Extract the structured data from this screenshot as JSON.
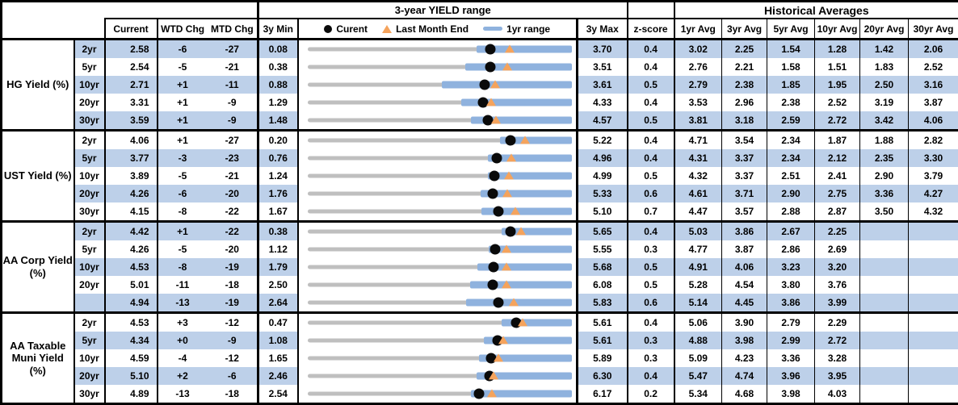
{
  "header": {
    "range_title": "3-year YIELD range",
    "historical_title": "Historical Averages",
    "col_current": "Current",
    "col_wtd": "WTD Chg",
    "col_mtd": "MTD Chg",
    "col_3y_min": "3y Min",
    "col_3y_max": "3y Max",
    "col_zscore": "z-score",
    "avg_cols": [
      "1yr Avg",
      "3yr Avg",
      "5yr Avg",
      "10yr Avg",
      "20yr Avg",
      "30yr Avg"
    ],
    "legend": {
      "current": "Curent",
      "last_month": "Last Month End",
      "range": "1yr range"
    }
  },
  "colors": {
    "stripe": "#bdd0e9",
    "bar_blue": "#8fb2de",
    "triangle_orange": "#f5a35c",
    "track_gray": "#bfbfbf",
    "dot_black": "#0a0a0a"
  },
  "chart_data": {
    "type": "table",
    "note": "Each row has a dot-and-bar range chart: gray track spans 3y Min to 3y Max, blue bar is 1yr range (lo to hi), black dot is Current, orange triangle is Last Month End.",
    "groups": [
      {
        "label": "HG Yield (%)",
        "rows": [
          {
            "tenor": "2yr",
            "current": "2.58",
            "wtd": "-6",
            "mtd": "-27",
            "min": "0.08",
            "max": "3.70",
            "z": "0.4",
            "avgs": [
              "3.02",
              "2.25",
              "1.54",
              "1.28",
              "1.42",
              "2.06"
            ],
            "range": {
              "lo": 2.4,
              "hi": 3.7,
              "cur": 2.58,
              "lme": 2.85
            }
          },
          {
            "tenor": "5yr",
            "current": "2.54",
            "wtd": "-5",
            "mtd": "-21",
            "min": "0.38",
            "max": "3.51",
            "z": "0.4",
            "avgs": [
              "2.76",
              "2.21",
              "1.58",
              "1.51",
              "1.83",
              "2.52"
            ],
            "range": {
              "lo": 2.25,
              "hi": 3.51,
              "cur": 2.54,
              "lme": 2.75
            }
          },
          {
            "tenor": "10yr",
            "current": "2.71",
            "wtd": "+1",
            "mtd": "-11",
            "min": "0.88",
            "max": "3.61",
            "z": "0.5",
            "avgs": [
              "2.79",
              "2.38",
              "1.85",
              "1.95",
              "2.50",
              "3.16"
            ],
            "range": {
              "lo": 2.27,
              "hi": 3.61,
              "cur": 2.71,
              "lme": 2.82
            }
          },
          {
            "tenor": "20yr",
            "current": "3.31",
            "wtd": "+1",
            "mtd": "-9",
            "min": "1.29",
            "max": "4.33",
            "z": "0.4",
            "avgs": [
              "3.53",
              "2.96",
              "2.38",
              "2.52",
              "3.19",
              "3.87"
            ],
            "range": {
              "lo": 3.06,
              "hi": 4.33,
              "cur": 3.31,
              "lme": 3.4
            }
          },
          {
            "tenor": "30yr",
            "current": "3.59",
            "wtd": "+1",
            "mtd": "-9",
            "min": "1.48",
            "max": "4.57",
            "z": "0.5",
            "avgs": [
              "3.81",
              "3.18",
              "2.59",
              "2.72",
              "3.42",
              "4.06"
            ],
            "range": {
              "lo": 3.39,
              "hi": 4.57,
              "cur": 3.59,
              "lme": 3.68
            }
          }
        ]
      },
      {
        "label": "UST Yield (%)",
        "rows": [
          {
            "tenor": "2yr",
            "current": "4.06",
            "wtd": "+1",
            "mtd": "-27",
            "min": "0.20",
            "max": "5.22",
            "z": "0.4",
            "avgs": [
              "4.71",
              "3.54",
              "2.34",
              "1.87",
              "1.88",
              "2.82"
            ],
            "range": {
              "lo": 3.85,
              "hi": 5.22,
              "cur": 4.06,
              "lme": 4.33
            }
          },
          {
            "tenor": "5yr",
            "current": "3.77",
            "wtd": "-3",
            "mtd": "-23",
            "min": "0.76",
            "max": "4.96",
            "z": "0.4",
            "avgs": [
              "4.31",
              "3.37",
              "2.34",
              "2.12",
              "2.35",
              "3.30"
            ],
            "range": {
              "lo": 3.63,
              "hi": 4.96,
              "cur": 3.77,
              "lme": 4.0
            }
          },
          {
            "tenor": "10yr",
            "current": "3.89",
            "wtd": "-5",
            "mtd": "-21",
            "min": "1.24",
            "max": "4.99",
            "z": "0.5",
            "avgs": [
              "4.32",
              "3.37",
              "2.51",
              "2.41",
              "2.90",
              "3.79"
            ],
            "range": {
              "lo": 3.8,
              "hi": 4.99,
              "cur": 3.89,
              "lme": 4.1
            }
          },
          {
            "tenor": "20yr",
            "current": "4.26",
            "wtd": "-6",
            "mtd": "-20",
            "min": "1.76",
            "max": "5.33",
            "z": "0.6",
            "avgs": [
              "4.61",
              "3.71",
              "2.90",
              "2.75",
              "3.36",
              "4.27"
            ],
            "range": {
              "lo": 4.1,
              "hi": 5.33,
              "cur": 4.26,
              "lme": 4.46
            }
          },
          {
            "tenor": "30yr",
            "current": "4.15",
            "wtd": "-8",
            "mtd": "-22",
            "min": "1.67",
            "max": "5.10",
            "z": "0.7",
            "avgs": [
              "4.47",
              "3.57",
              "2.88",
              "2.87",
              "3.50",
              "4.32"
            ],
            "range": {
              "lo": 3.93,
              "hi": 5.1,
              "cur": 4.15,
              "lme": 4.37
            }
          }
        ]
      },
      {
        "label": "AA Corp Yield\n(%)",
        "rows": [
          {
            "tenor": "2yr",
            "current": "4.42",
            "wtd": "+1",
            "mtd": "-22",
            "min": "0.38",
            "max": "5.65",
            "z": "0.4",
            "avgs": [
              "5.03",
              "3.86",
              "2.67",
              "2.25",
              "",
              ""
            ],
            "range": {
              "lo": 4.25,
              "hi": 5.65,
              "cur": 4.42,
              "lme": 4.64
            }
          },
          {
            "tenor": "5yr",
            "current": "4.26",
            "wtd": "-5",
            "mtd": "-20",
            "min": "1.12",
            "max": "5.55",
            "z": "0.3",
            "avgs": [
              "4.77",
              "3.87",
              "2.86",
              "2.69",
              "",
              ""
            ],
            "range": {
              "lo": 4.16,
              "hi": 5.55,
              "cur": 4.26,
              "lme": 4.46
            }
          },
          {
            "tenor": "10yr",
            "current": "4.53",
            "wtd": "-8",
            "mtd": "-19",
            "min": "1.79",
            "max": "5.68",
            "z": "0.5",
            "avgs": [
              "4.91",
              "4.06",
              "3.23",
              "3.20",
              "",
              ""
            ],
            "range": {
              "lo": 4.29,
              "hi": 5.68,
              "cur": 4.53,
              "lme": 4.72
            }
          },
          {
            "tenor": "20yr",
            "current": "5.01",
            "wtd": "-11",
            "mtd": "-18",
            "min": "2.50",
            "max": "6.08",
            "z": "0.5",
            "avgs": [
              "5.28",
              "4.54",
              "3.80",
              "3.76",
              "",
              ""
            ],
            "range": {
              "lo": 4.7,
              "hi": 6.08,
              "cur": 5.01,
              "lme": 5.19
            }
          },
          {
            "tenor": "",
            "current": "4.94",
            "wtd": "-13",
            "mtd": "-19",
            "min": "2.64",
            "max": "5.83",
            "z": "0.6",
            "avgs": [
              "5.14",
              "4.45",
              "3.86",
              "3.99",
              "",
              ""
            ],
            "range": {
              "lo": 4.55,
              "hi": 5.83,
              "cur": 4.94,
              "lme": 5.13
            }
          }
        ]
      },
      {
        "label": "AA Taxable\nMuni Yield\n(%)",
        "rows": [
          {
            "tenor": "2yr",
            "current": "4.53",
            "wtd": "+3",
            "mtd": "-12",
            "min": "0.47",
            "max": "5.61",
            "z": "0.4",
            "avgs": [
              "5.06",
              "3.90",
              "2.79",
              "2.29",
              "",
              ""
            ],
            "range": {
              "lo": 4.24,
              "hi": 5.61,
              "cur": 4.53,
              "lme": 4.65
            }
          },
          {
            "tenor": "5yr",
            "current": "4.34",
            "wtd": "+0",
            "mtd": "-9",
            "min": "1.08",
            "max": "5.61",
            "z": "0.3",
            "avgs": [
              "4.88",
              "3.98",
              "2.99",
              "2.72",
              "",
              ""
            ],
            "range": {
              "lo": 4.1,
              "hi": 5.61,
              "cur": 4.34,
              "lme": 4.43
            }
          },
          {
            "tenor": "10yr",
            "current": "4.59",
            "wtd": "-4",
            "mtd": "-12",
            "min": "1.65",
            "max": "5.89",
            "z": "0.3",
            "avgs": [
              "5.09",
              "4.23",
              "3.36",
              "3.28",
              "",
              ""
            ],
            "range": {
              "lo": 4.4,
              "hi": 5.89,
              "cur": 4.59,
              "lme": 4.71
            }
          },
          {
            "tenor": "20yr",
            "current": "5.10",
            "wtd": "+2",
            "mtd": "-6",
            "min": "2.46",
            "max": "6.30",
            "z": "0.4",
            "avgs": [
              "5.47",
              "4.74",
              "3.96",
              "3.95",
              "",
              ""
            ],
            "range": {
              "lo": 4.92,
              "hi": 6.3,
              "cur": 5.1,
              "lme": 5.16
            }
          },
          {
            "tenor": "30yr",
            "current": "4.89",
            "wtd": "-13",
            "mtd": "-18",
            "min": "2.54",
            "max": "6.17",
            "z": "0.2",
            "avgs": [
              "5.34",
              "4.68",
              "3.98",
              "4.03",
              "",
              ""
            ],
            "range": {
              "lo": 4.79,
              "hi": 6.17,
              "cur": 4.89,
              "lme": 5.07
            }
          }
        ]
      }
    ]
  }
}
